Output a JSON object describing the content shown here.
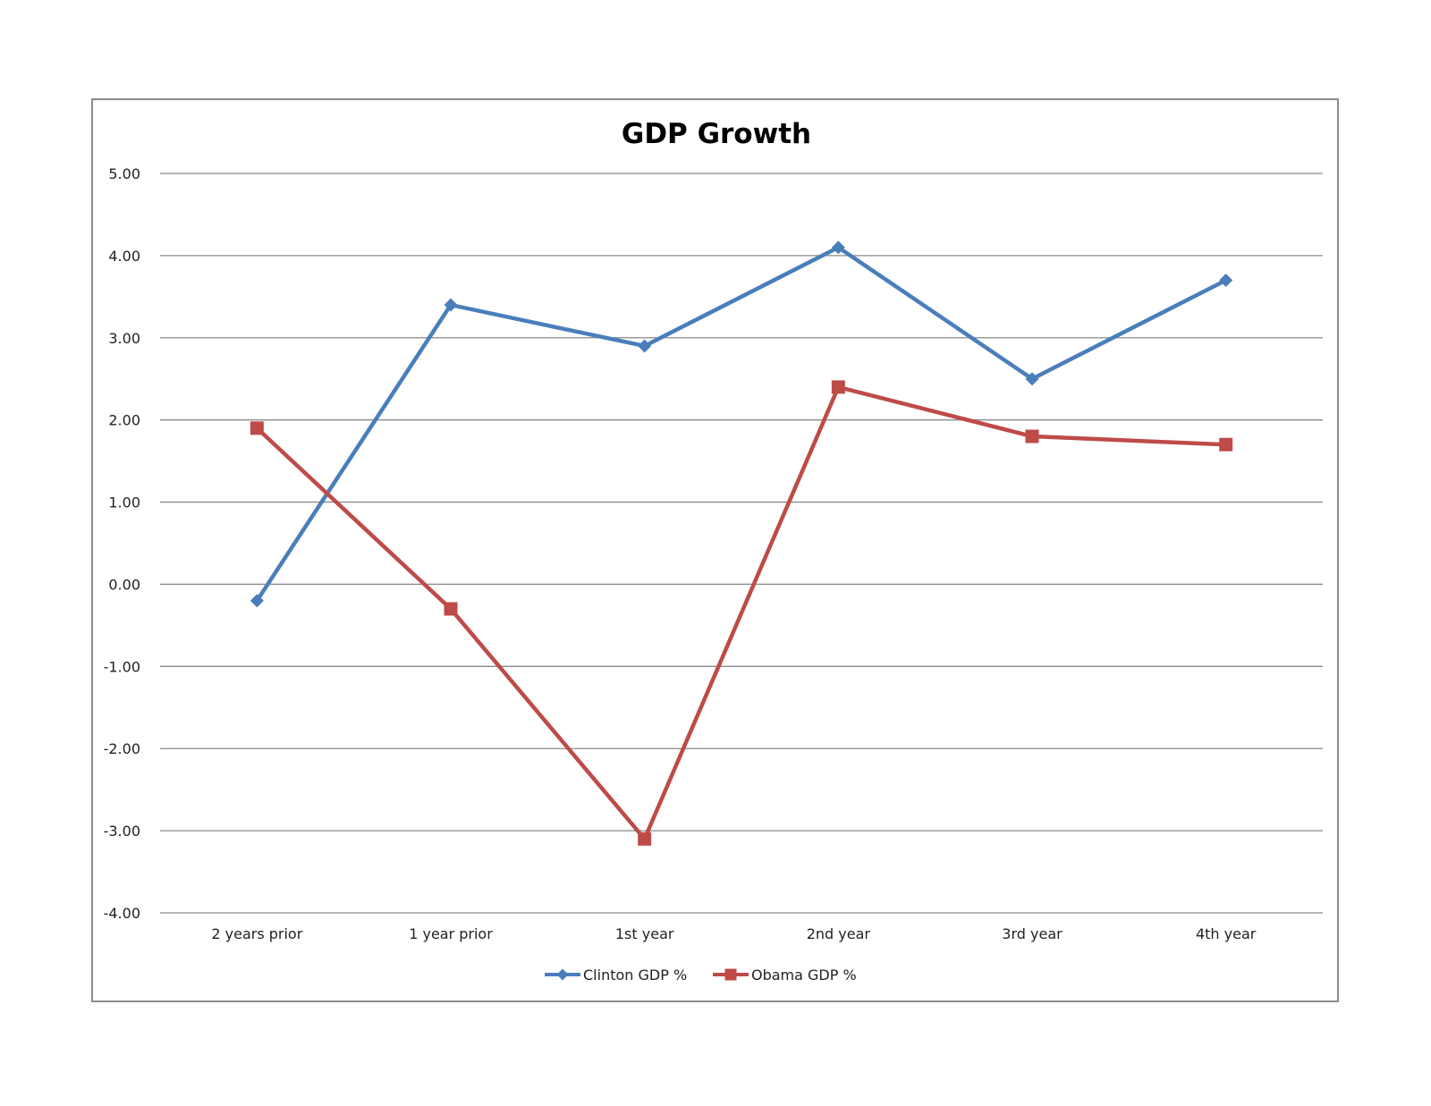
{
  "chart_data": {
    "type": "line",
    "title": "GDP Growth",
    "xlabel": "",
    "ylabel": "",
    "categories": [
      "2 years prior",
      "1 year prior",
      "1st year",
      "2nd year",
      "3rd year",
      "4th year"
    ],
    "ylim": [
      -4,
      5
    ],
    "yticks": [
      5,
      4,
      3,
      2,
      1,
      0,
      -1,
      -2,
      -3,
      -4
    ],
    "ytick_labels": [
      "5.00",
      "4.00",
      "3.00",
      "2.00",
      "1.00",
      "0.00",
      "-1.00",
      "-2.00",
      "-3.00",
      "-4.00"
    ],
    "grid": true,
    "legend_position": "bottom",
    "series": [
      {
        "name": "Clinton GDP %",
        "values": [
          -0.2,
          3.4,
          2.9,
          4.1,
          2.5,
          3.7
        ],
        "color": "#4a7ebb",
        "marker": "diamond"
      },
      {
        "name": "Obama GDP %",
        "values": [
          1.9,
          -0.3,
          -3.1,
          2.4,
          1.8,
          1.7
        ],
        "color": "#be4b48",
        "marker": "square"
      }
    ]
  }
}
